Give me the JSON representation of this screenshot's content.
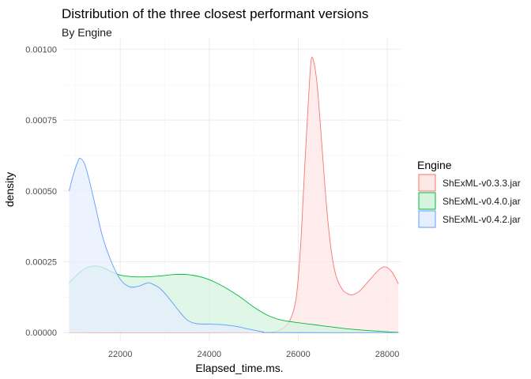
{
  "chart_data": {
    "type": "area",
    "title": "Distribution of the three closest performant versions",
    "subtitle": "By Engine",
    "xlabel": "Elapsed_time.ms.",
    "ylabel": "density",
    "xlim": [
      20700,
      28300
    ],
    "ylim": [
      -3e-05,
      0.00104
    ],
    "x_ticks": [
      22000,
      24000,
      26000,
      28000
    ],
    "x_tick_labels": [
      "22000",
      "24000",
      "26000",
      "28000"
    ],
    "y_ticks": [
      0,
      0.00025,
      0.0005,
      0.00075,
      0.001
    ],
    "y_tick_labels": [
      "0.00000",
      "0.00025",
      "0.00050",
      "0.00075",
      "0.00100"
    ],
    "grid": true,
    "legend": {
      "title": "Engine",
      "position": "right"
    },
    "series": [
      {
        "name": "ShExML-v0.3.3.jar",
        "color": "#F8766D",
        "fill": "#FDE7E5",
        "points": [
          [
            20850,
            0
          ],
          [
            25000,
            0
          ],
          [
            25400,
            2e-06
          ],
          [
            25600,
            1e-05
          ],
          [
            25800,
            4e-05
          ],
          [
            25950,
            0.00012
          ],
          [
            26050,
            0.0003
          ],
          [
            26150,
            0.0006
          ],
          [
            26250,
            0.00088
          ],
          [
            26300,
            0.00097
          ],
          [
            26380,
            0.00093
          ],
          [
            26450,
            0.00083
          ],
          [
            26550,
            0.00062
          ],
          [
            26650,
            0.00042
          ],
          [
            26750,
            0.00028
          ],
          [
            26850,
            0.0002
          ],
          [
            27000,
            0.00015
          ],
          [
            27150,
            0.000135
          ],
          [
            27250,
            0.000135
          ],
          [
            27400,
            0.00015
          ],
          [
            27600,
            0.000185
          ],
          [
            27800,
            0.00022
          ],
          [
            27950,
            0.000232
          ],
          [
            28100,
            0.000215
          ],
          [
            28250,
            0.000172
          ]
        ]
      },
      {
        "name": "ShExML-v0.4.0.jar",
        "color": "#00BA38",
        "fill": "#D6F3DE",
        "points": [
          [
            20850,
            0.000175
          ],
          [
            21000,
            0.0002
          ],
          [
            21200,
            0.000225
          ],
          [
            21400,
            0.000235
          ],
          [
            21600,
            0.00023
          ],
          [
            21800,
            0.000215
          ],
          [
            22000,
            0.000203
          ],
          [
            22300,
            0.000197
          ],
          [
            22600,
            0.000197
          ],
          [
            22900,
            0.0002
          ],
          [
            23200,
            0.000205
          ],
          [
            23500,
            0.000205
          ],
          [
            23800,
            0.000197
          ],
          [
            24100,
            0.00018
          ],
          [
            24400,
            0.000155
          ],
          [
            24700,
            0.000125
          ],
          [
            25000,
            9e-05
          ],
          [
            25300,
            6.2e-05
          ],
          [
            25600,
            4.5e-05
          ],
          [
            26000,
            3.5e-05
          ],
          [
            26500,
            2.5e-05
          ],
          [
            27000,
            1.5e-05
          ],
          [
            27500,
            8e-06
          ],
          [
            28000,
            3e-06
          ],
          [
            28250,
            1e-06
          ]
        ]
      },
      {
        "name": "ShExML-v0.4.2.jar",
        "color": "#619CFF",
        "fill": "#E5EEFD",
        "points": [
          [
            20850,
            0.0005
          ],
          [
            20950,
            0.00056
          ],
          [
            21050,
            0.000605
          ],
          [
            21100,
            0.000615
          ],
          [
            21200,
            0.000595
          ],
          [
            21300,
            0.00054
          ],
          [
            21450,
            0.00044
          ],
          [
            21600,
            0.00034
          ],
          [
            21800,
            0.00025
          ],
          [
            22000,
            0.000188
          ],
          [
            22200,
            0.000162
          ],
          [
            22400,
            0.000163
          ],
          [
            22600,
            0.000175
          ],
          [
            22700,
            0.000173
          ],
          [
            22900,
            0.000155
          ],
          [
            23100,
            0.00012
          ],
          [
            23300,
            8e-05
          ],
          [
            23500,
            4.5e-05
          ],
          [
            23700,
            3.2e-05
          ],
          [
            24000,
            3e-05
          ],
          [
            24300,
            2.8e-05
          ],
          [
            24600,
            2.2e-05
          ],
          [
            24900,
            1.2e-05
          ],
          [
            25200,
            3e-06
          ],
          [
            25500,
            0
          ],
          [
            28250,
            0
          ]
        ]
      }
    ]
  }
}
